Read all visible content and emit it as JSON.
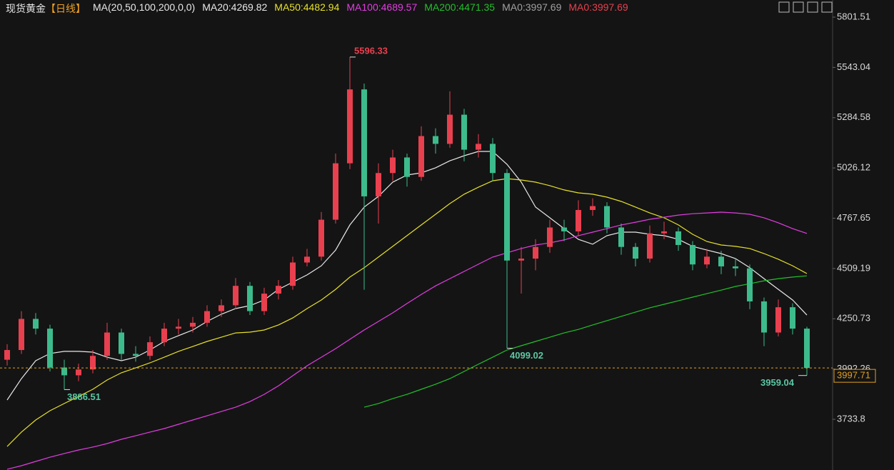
{
  "chart_data": {
    "type": "candlestick",
    "title": "现货黄金",
    "period": "【日线】",
    "indicator": "MA(20,50,100,200,0,0)",
    "up_color": "#e8404f",
    "down_color": "#3dbb8c",
    "ylim": [
      3473.1,
      5889.65
    ],
    "yticks": [
      5801.51,
      5543.04,
      5284.58,
      5026.12,
      4767.65,
      4509.19,
      4250.73,
      3992.26,
      3733.8
    ],
    "open": [
      4040,
      4090,
      4250,
      4200,
      4000,
      3960,
      3990,
      4060,
      4180,
      4070,
      4060,
      4130,
      4200,
      4210,
      4230,
      4290,
      4320,
      4420,
      4290,
      4380,
      4420,
      4540,
      4570,
      4760,
      5050,
      5430,
      4880,
      5000,
      5080,
      4980,
      5190,
      5150,
      5300,
      5120,
      5150,
      5000,
      4550,
      4560,
      4620,
      4720,
      4700,
      4810,
      4830,
      4720,
      4620,
      4560,
      4690,
      4700,
      4630,
      4530,
      4570,
      4520,
      4510,
      4340,
      4180,
      4310,
      4200
    ],
    "high": [
      4120,
      4290,
      4280,
      4220,
      4040,
      4020,
      4090,
      4230,
      4200,
      4110,
      4160,
      4230,
      4250,
      4260,
      4320,
      4350,
      4460,
      4440,
      4410,
      4450,
      4570,
      4610,
      4800,
      5100,
      5596.33,
      5460,
      5050,
      5120,
      5100,
      5240,
      5230,
      5420,
      5330,
      5200,
      5180,
      5020,
      4620,
      4660,
      4760,
      4760,
      4860,
      4870,
      4850,
      4740,
      4640,
      4730,
      4750,
      4720,
      4650,
      4610,
      4600,
      4560,
      4530,
      4360,
      4350,
      4330,
      4210
    ],
    "low": [
      4010,
      4070,
      4170,
      3980,
      3886.51,
      3930,
      3970,
      4040,
      4040,
      4030,
      4040,
      4110,
      4170,
      4180,
      4210,
      4260,
      4300,
      4270,
      4270,
      4350,
      4400,
      4520,
      4550,
      4740,
      5020,
      4400,
      4740,
      4960,
      4930,
      4960,
      5100,
      5130,
      5060,
      5080,
      4960,
      4099.02,
      4380,
      4500,
      4590,
      4650,
      4680,
      4780,
      4690,
      4580,
      4520,
      4540,
      4660,
      4600,
      4500,
      4510,
      4480,
      4470,
      4300,
      4110,
      4160,
      4170,
      3959.04
    ],
    "close": [
      4090,
      4250,
      4200,
      4000,
      3960,
      3990,
      4060,
      4180,
      4070,
      4060,
      4130,
      4200,
      4210,
      4230,
      4290,
      4320,
      4420,
      4290,
      4380,
      4420,
      4540,
      4570,
      4760,
      5050,
      5430,
      4880,
      5000,
      5080,
      4980,
      5190,
      5150,
      5300,
      5120,
      5150,
      5000,
      4550,
      4560,
      4620,
      4720,
      4700,
      4810,
      4830,
      4720,
      4620,
      4560,
      4690,
      4700,
      4630,
      4530,
      4570,
      4520,
      4510,
      4340,
      4180,
      4310,
      4200,
      3997.71
    ],
    "current_label": "3997.71",
    "series": [
      {
        "name": "MA20:4269.82",
        "color": "#e8e8e8",
        "values": [
          3833,
          3943,
          4035,
          4072,
          4083,
          4083,
          4079,
          4053,
          4035,
          4053,
          4090,
          4134,
          4164,
          4193,
          4237,
          4274,
          4303,
          4318,
          4347,
          4402,
          4439,
          4476,
          4523,
          4604,
          4733,
          4825,
          4880,
          4953,
          4990,
          5001,
          5027,
          5063,
          5089,
          5111,
          5111,
          5045,
          4953,
          4825,
          4770,
          4714,
          4659,
          4634,
          4678,
          4696,
          4696,
          4685,
          4678,
          4659,
          4623,
          4604,
          4586,
          4560,
          4513,
          4457,
          4402,
          4347,
          4269.82
        ]
      },
      {
        "name": "MA50:4482.94",
        "color": "#e6e02a",
        "values": [
          3594,
          3668,
          3730,
          3778,
          3815,
          3851,
          3888,
          3936,
          3973,
          3998,
          4024,
          4053,
          4083,
          4108,
          4134,
          4156,
          4178,
          4182,
          4193,
          4219,
          4255,
          4303,
          4347,
          4402,
          4465,
          4513,
          4568,
          4623,
          4678,
          4733,
          4788,
          4843,
          4891,
          4927,
          4960,
          4971,
          4964,
          4953,
          4935,
          4913,
          4898,
          4891,
          4876,
          4854,
          4825,
          4795,
          4770,
          4733,
          4685,
          4648,
          4630,
          4623,
          4612,
          4586,
          4557,
          4523,
          4482.94
        ]
      },
      {
        "name": "MA100:4689.57",
        "color": "#e23de2",
        "values": [
          3477,
          3495,
          3517,
          3539,
          3558,
          3576,
          3591,
          3609,
          3631,
          3649,
          3668,
          3686,
          3708,
          3730,
          3752,
          3774,
          3796,
          3825,
          3862,
          3906,
          3958,
          4009,
          4053,
          4097,
          4145,
          4193,
          4237,
          4281,
          4329,
          4376,
          4420,
          4457,
          4494,
          4531,
          4568,
          4590,
          4612,
          4630,
          4641,
          4656,
          4678,
          4696,
          4714,
          4733,
          4747,
          4762,
          4773,
          4784,
          4791,
          4795,
          4799,
          4795,
          4788,
          4770,
          4744,
          4714,
          4689.57
        ]
      },
      {
        "name": "MA200:4471.35",
        "color": "#22c02a",
        "values": [
          null,
          null,
          null,
          null,
          null,
          null,
          null,
          null,
          null,
          null,
          null,
          null,
          null,
          null,
          null,
          null,
          null,
          null,
          null,
          null,
          null,
          null,
          null,
          null,
          null,
          3796,
          3815,
          3840,
          3862,
          3888,
          3914,
          3943,
          3980,
          4017,
          4053,
          4090,
          4112,
          4134,
          4156,
          4178,
          4196,
          4219,
          4241,
          4263,
          4285,
          4307,
          4325,
          4343,
          4362,
          4380,
          4398,
          4417,
          4431,
          4446,
          4457,
          4465,
          4471.35
        ]
      }
    ],
    "legend_extra": [
      {
        "label": "MA0:3997.69",
        "color": "#a0a0a0"
      },
      {
        "label": "MA0:3997.69",
        "color": "#e8404f"
      }
    ]
  }
}
